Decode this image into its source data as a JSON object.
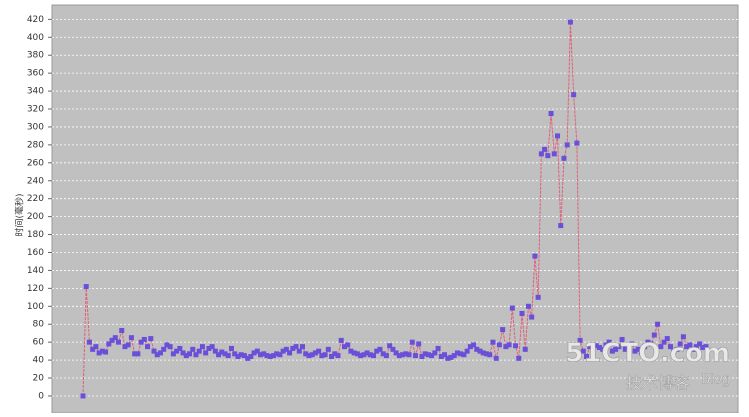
{
  "chart_data": {
    "type": "line",
    "ylabel": "时间(毫秒)",
    "values": [
      0,
      122,
      60,
      52,
      55,
      48,
      50,
      49,
      58,
      62,
      65,
      60,
      73,
      55,
      57,
      65,
      47,
      47,
      60,
      63,
      55,
      64,
      50,
      46,
      48,
      52,
      57,
      55,
      47,
      50,
      53,
      48,
      45,
      47,
      52,
      46,
      50,
      55,
      48,
      53,
      55,
      50,
      46,
      49,
      47,
      45,
      53,
      47,
      44,
      46,
      45,
      42,
      44,
      48,
      50,
      46,
      47,
      45,
      44,
      45,
      47,
      46,
      50,
      52,
      48,
      53,
      55,
      50,
      55,
      47,
      45,
      46,
      48,
      50,
      45,
      46,
      52,
      44,
      47,
      45,
      62,
      55,
      57,
      50,
      48,
      47,
      45,
      46,
      48,
      46,
      45,
      50,
      52,
      47,
      45,
      56,
      52,
      48,
      45,
      46,
      47,
      46,
      60,
      45,
      58,
      44,
      47,
      46,
      45,
      48,
      53,
      44,
      46,
      42,
      43,
      45,
      48,
      47,
      46,
      50,
      55,
      57,
      52,
      50,
      48,
      47,
      46,
      60,
      42,
      57,
      74,
      55,
      57,
      98,
      56,
      42,
      92,
      52,
      100,
      88,
      156,
      110,
      270,
      275,
      268,
      315,
      270,
      290,
      190,
      265,
      280,
      417,
      336,
      282,
      62,
      50,
      44,
      55,
      57,
      56,
      54,
      52,
      57,
      60,
      50,
      52,
      55,
      63,
      52,
      55,
      58,
      50,
      52,
      48,
      55,
      60,
      58,
      68,
      80,
      55,
      60,
      64,
      55,
      50,
      52,
      58,
      66,
      55,
      57,
      52,
      55,
      58,
      54,
      55
    ],
    "color": "#e0607a",
    "marker_color": "#6a4fd8",
    "ylim": [
      -19,
      436
    ],
    "yticks": [
      0,
      20,
      40,
      60,
      80,
      100,
      120,
      140,
      160,
      180,
      200,
      220,
      240,
      260,
      280,
      300,
      320,
      340,
      360,
      380,
      400,
      420
    ],
    "grid": true,
    "watermark": [
      "51CTO.com",
      "技术博客",
      "Blog"
    ]
  }
}
